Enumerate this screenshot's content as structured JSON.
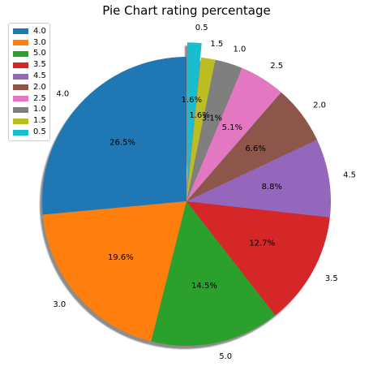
{
  "chart_data": {
    "type": "pie",
    "title": "Pie Chart rating percentage",
    "start_angle_deg": 90,
    "direction": "counterclockwise",
    "shadow": true,
    "legend_position": "top-left",
    "explode": {
      "0.5": 0.1
    },
    "slices": [
      {
        "label": "4.0",
        "value": 26.5,
        "pct_label": "26.5%",
        "color": "#1f77b4"
      },
      {
        "label": "3.0",
        "value": 19.6,
        "pct_label": "19.6%",
        "color": "#ff7f0e"
      },
      {
        "label": "5.0",
        "value": 14.5,
        "pct_label": "14.5%",
        "color": "#2ca02c"
      },
      {
        "label": "3.5",
        "value": 12.7,
        "pct_label": "12.7%",
        "color": "#d62728"
      },
      {
        "label": "4.5",
        "value": 8.8,
        "pct_label": "8.8%",
        "color": "#9467bd"
      },
      {
        "label": "2.0",
        "value": 6.6,
        "pct_label": "6.6%",
        "color": "#8c564b"
      },
      {
        "label": "2.5",
        "value": 5.1,
        "pct_label": "5.1%",
        "color": "#e377c2"
      },
      {
        "label": "1.0",
        "value": 3.1,
        "pct_label": "3.1%",
        "color": "#7f7f7f"
      },
      {
        "label": "1.5",
        "value": 1.6,
        "pct_label": "1.6%",
        "color": "#bcbd22"
      },
      {
        "label": "0.5",
        "value": 1.6,
        "pct_label": "1.6%",
        "color": "#17becf"
      }
    ]
  }
}
